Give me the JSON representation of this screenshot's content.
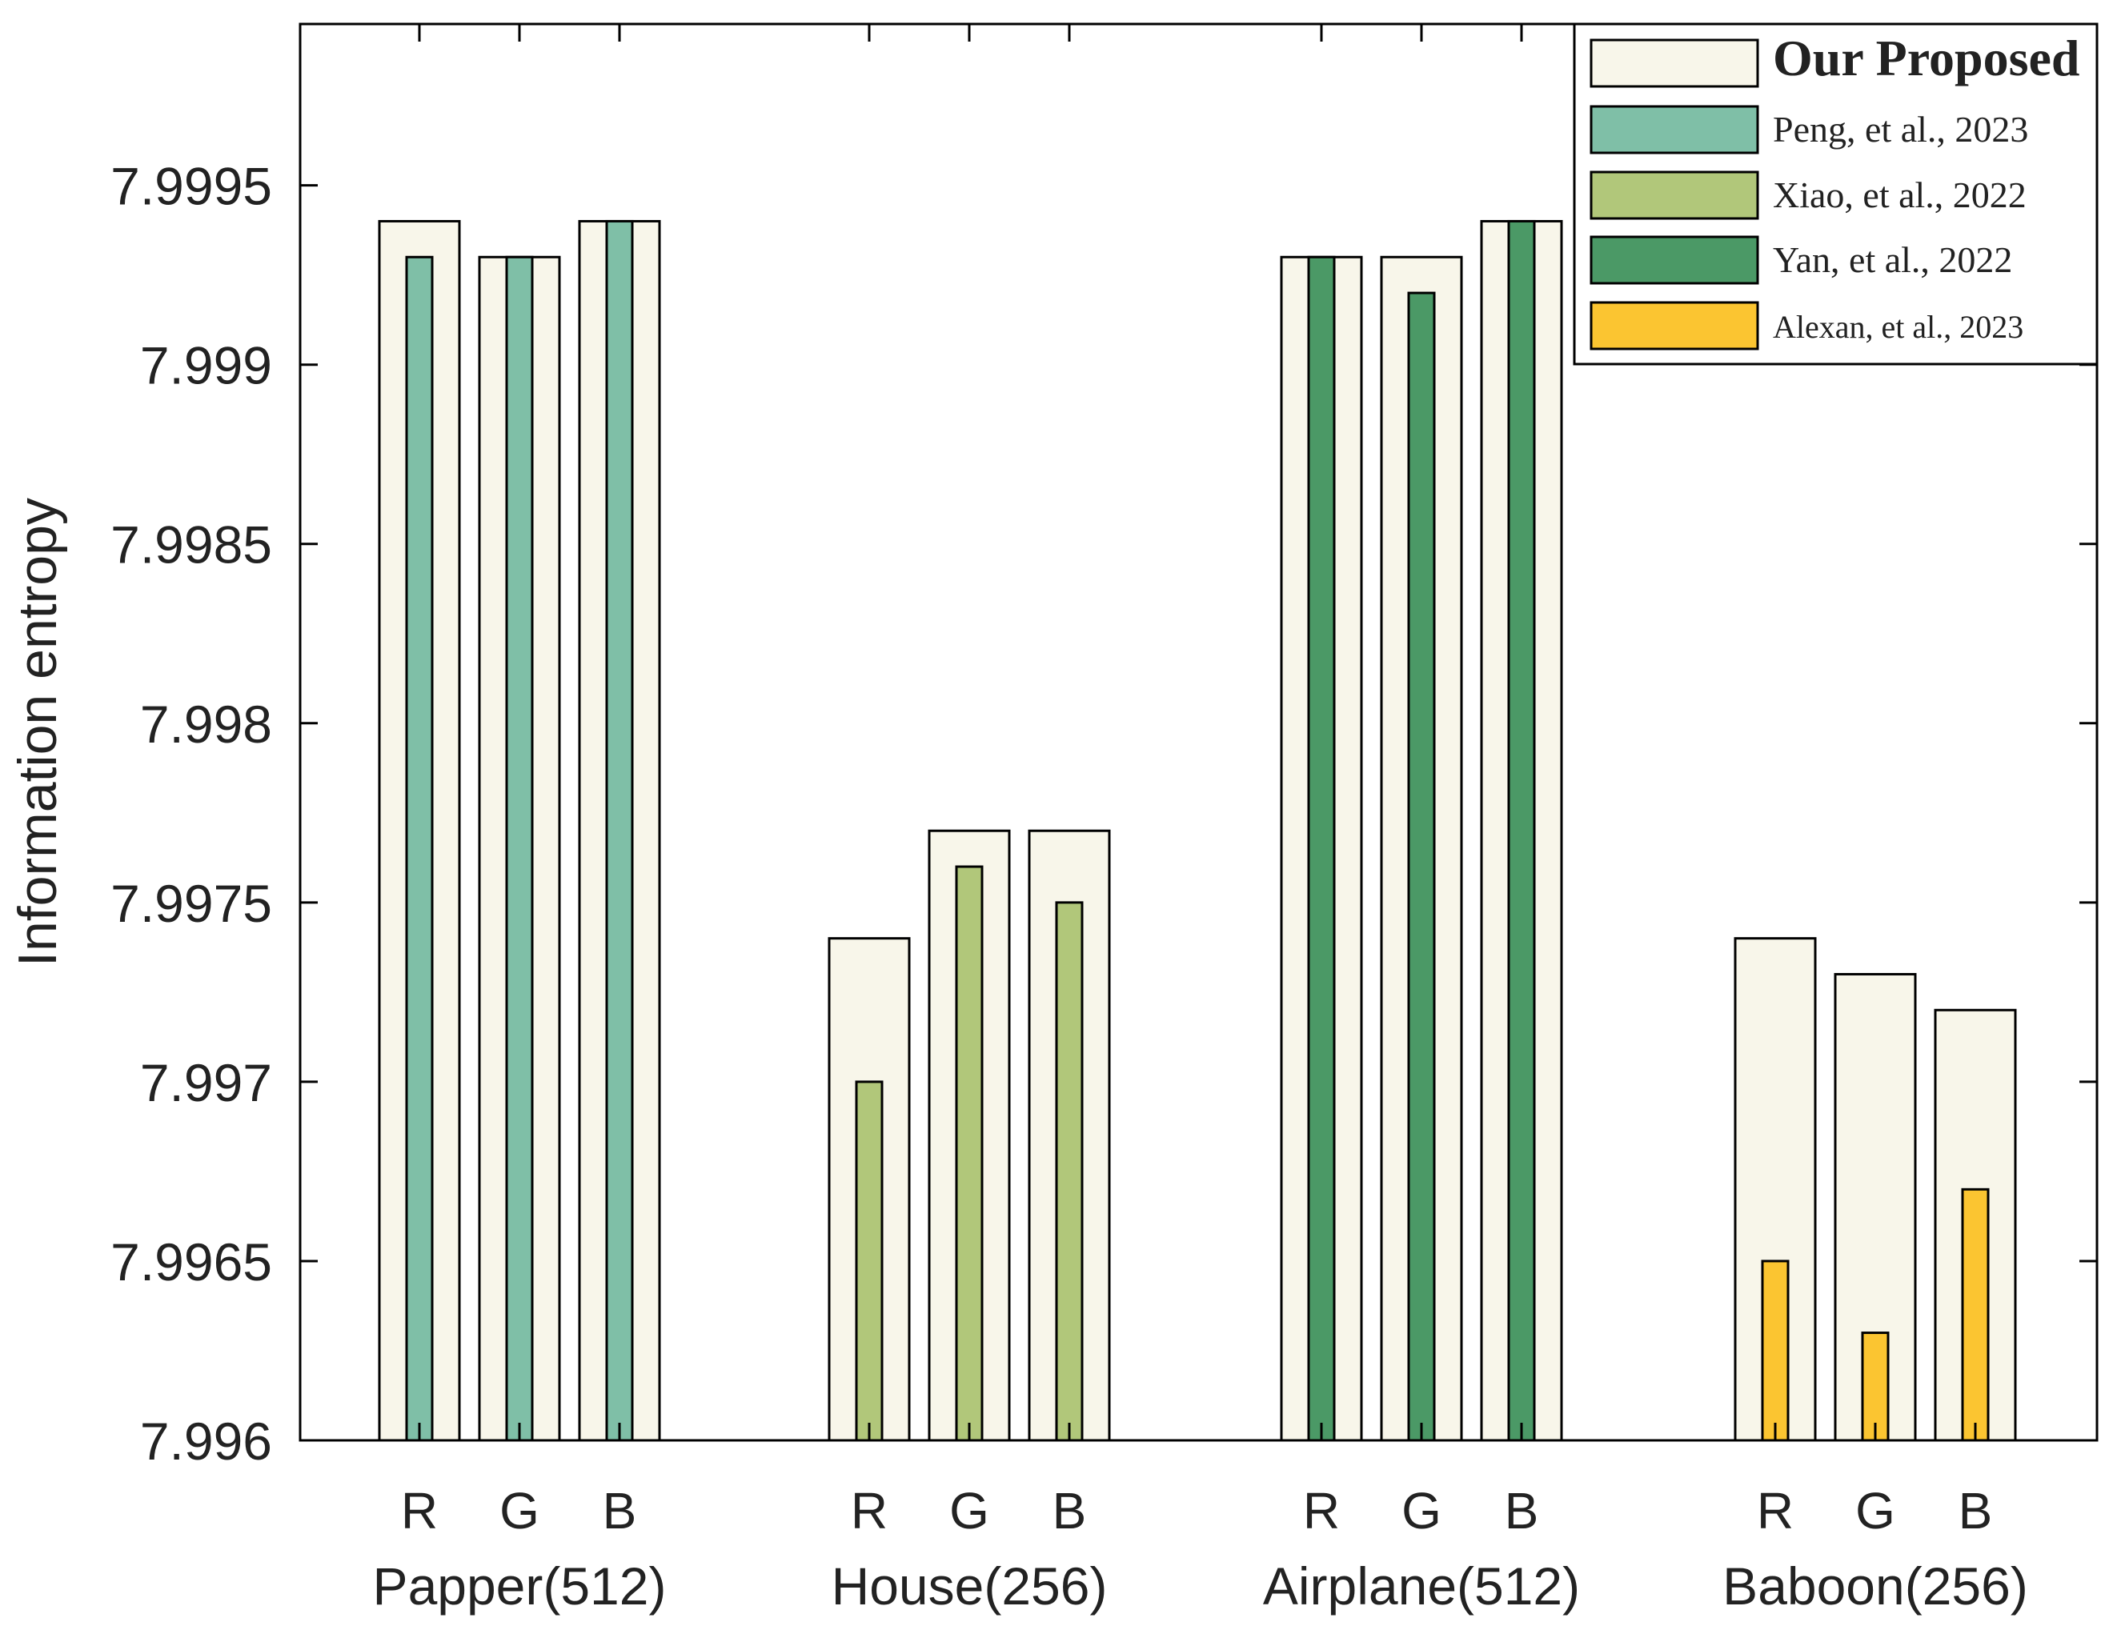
{
  "chart_data": {
    "type": "bar",
    "title": "",
    "xlabel": "",
    "ylabel": "Information entropy",
    "ylim": [
      7.996,
      7.99995
    ],
    "yticks": [
      "7.996",
      "7.9965",
      "7.997",
      "7.9975",
      "7.998",
      "7.9985",
      "7.999",
      "7.9995"
    ],
    "ytick_values": [
      7.996,
      7.9965,
      7.997,
      7.9975,
      7.998,
      7.9985,
      7.999,
      7.9995
    ],
    "grid": false,
    "legend_position": "top-right",
    "groups": [
      {
        "name": "Papper(512)",
        "channels": [
          "R",
          "G",
          "B"
        ],
        "proposed": [
          7.9994,
          7.9993,
          7.9994
        ],
        "comparison_series": "Peng, et al., 2023",
        "comparison": [
          7.9993,
          7.9993,
          7.9994
        ]
      },
      {
        "name": "House(256)",
        "channels": [
          "R",
          "G",
          "B"
        ],
        "proposed": [
          7.9974,
          7.9977,
          7.9977
        ],
        "comparison_series": "Xiao, et al., 2022",
        "comparison": [
          7.997,
          7.9976,
          7.9975
        ]
      },
      {
        "name": "Airplane(512)",
        "channels": [
          "R",
          "G",
          "B"
        ],
        "proposed": [
          7.9993,
          7.9993,
          7.9994
        ],
        "comparison_series": "Yan, et al., 2022",
        "comparison": [
          7.9993,
          7.9992,
          7.9994
        ]
      },
      {
        "name": "Baboon(256)",
        "channels": [
          "R",
          "G",
          "B"
        ],
        "proposed": [
          7.9974,
          7.9973,
          7.9972
        ],
        "comparison_series": "Alexan, et al., 2023",
        "comparison": [
          7.9965,
          7.9963,
          7.9967
        ]
      }
    ],
    "legend": [
      {
        "label": "Our Proposed",
        "color": "#f8f6ea"
      },
      {
        "label": "Peng, et al., 2023",
        "color": "#7fbfa7"
      },
      {
        "label": "Xiao, et al., 2022",
        "color": "#b1c77a"
      },
      {
        "label": "Yan, et al., 2022",
        "color": "#4b9966"
      },
      {
        "label": "Alexan, et al., 2023",
        "color": "#fbc531"
      }
    ]
  }
}
